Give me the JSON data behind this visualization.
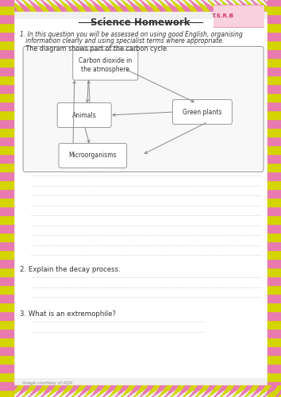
{
  "title": "Science Homework",
  "background_color": "#f0f0f0",
  "border_color_yellow": "#d4d400",
  "border_color_pink": "#e87ab0",
  "q1_line1": "1. In this question you will be assessed on using good English, organising",
  "q1_line2": "   information clearly and using specialist terms where appropriate.",
  "q1_subtext": "   The diagram shows part of the carbon cycle.",
  "q2_text": "2. Explain the decay process.",
  "q3_text": "3. What is an extremophile?",
  "footer_text": "Image courtesy of AQA",
  "dotted_line_color": "#aaaaaa",
  "box_edge_color": "#999999",
  "box_face_color": "#ffffff",
  "arrow_color": "#888888",
  "font_color": "#333333",
  "co2_label": "Carbon dioxide in\nthe atmosphere",
  "plants_label": "Green plants",
  "animals_label": "Animals",
  "micro_label": "Microorganisms"
}
